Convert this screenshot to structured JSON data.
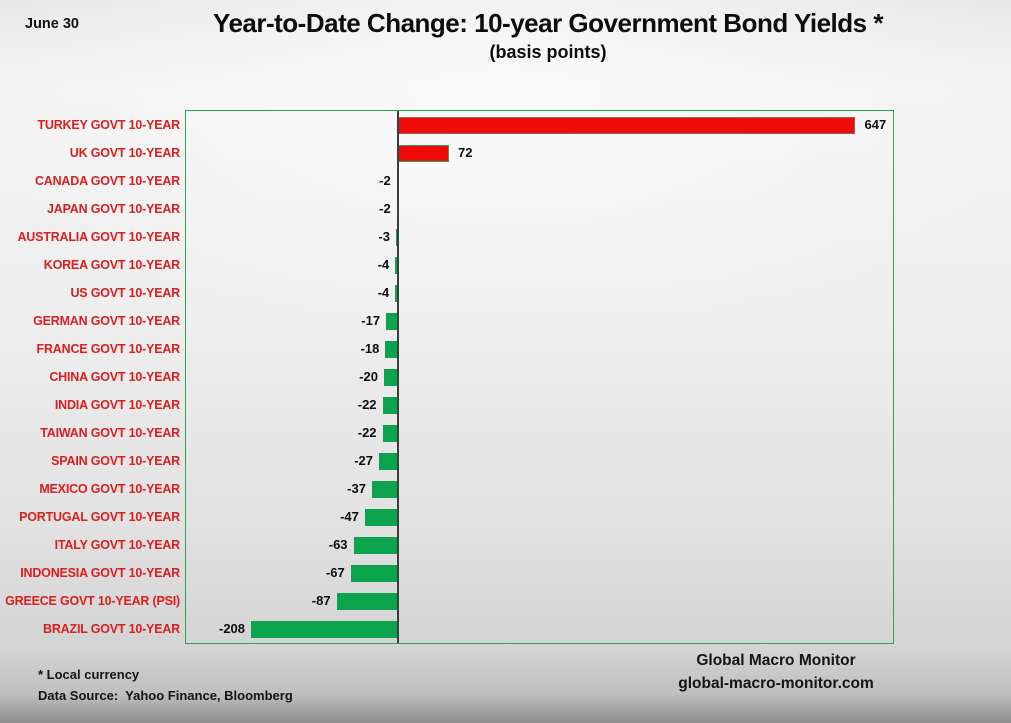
{
  "header": {
    "date_label": "June 30",
    "title": "Year-to-Date Change: 10-year Government Bond Yields *",
    "subtitle": "(basis points)"
  },
  "chart_data": {
    "type": "bar",
    "orientation": "horizontal",
    "title": "Year-to-Date Change: 10-year Government Bond Yields *",
    "subtitle": "(basis points)",
    "unit": "basis points",
    "categories": [
      "TURKEY GOVT 10-YEAR",
      "UK GOVT 10-YEAR",
      "CANADA GOVT 10-YEAR",
      "JAPAN GOVT 10-YEAR",
      "AUSTRALIA GOVT 10-YEAR",
      "KOREA GOVT 10-YEAR",
      "US GOVT 10-YEAR",
      "GERMAN GOVT 10-YEAR",
      "FRANCE GOVT 10-YEAR",
      "CHINA GOVT 10-YEAR",
      "INDIA GOVT 10-YEAR",
      "TAIWAN GOVT 10-YEAR",
      "SPAIN GOVT 10-YEAR",
      "MEXICO GOVT 10-YEAR",
      "PORTUGAL GOVT 10-YEAR",
      "ITALY GOVT 10-YEAR",
      "INDONESIA GOVT 10-YEAR",
      "GREECE GOVT 10-YEAR (PSI)",
      "BRAZIL GOVT 10-YEAR"
    ],
    "values": [
      647,
      72,
      -2,
      -2,
      -3,
      -4,
      -4,
      -17,
      -18,
      -20,
      -22,
      -22,
      -27,
      -37,
      -47,
      -63,
      -67,
      -87,
      -208
    ],
    "xlim": [
      -300,
      700
    ],
    "grid": false,
    "legend": "none",
    "colors": {
      "positive_bar": "#ee0c0c",
      "positive_bar_border": "#8a6d3b",
      "negative_bar": "#0ba44c",
      "category_label": "#d91f1f",
      "value_label": "#0d0d0d",
      "plot_border": "#2aa45a",
      "axis_line": "#3d3d3d"
    }
  },
  "footer": {
    "footnote_line1": "* Local currency",
    "footnote_line2": "Data Source:  Yahoo Finance, Bloomberg",
    "brand_line1": "Global Macro Monitor",
    "brand_line2": "global-macro-monitor.com"
  }
}
